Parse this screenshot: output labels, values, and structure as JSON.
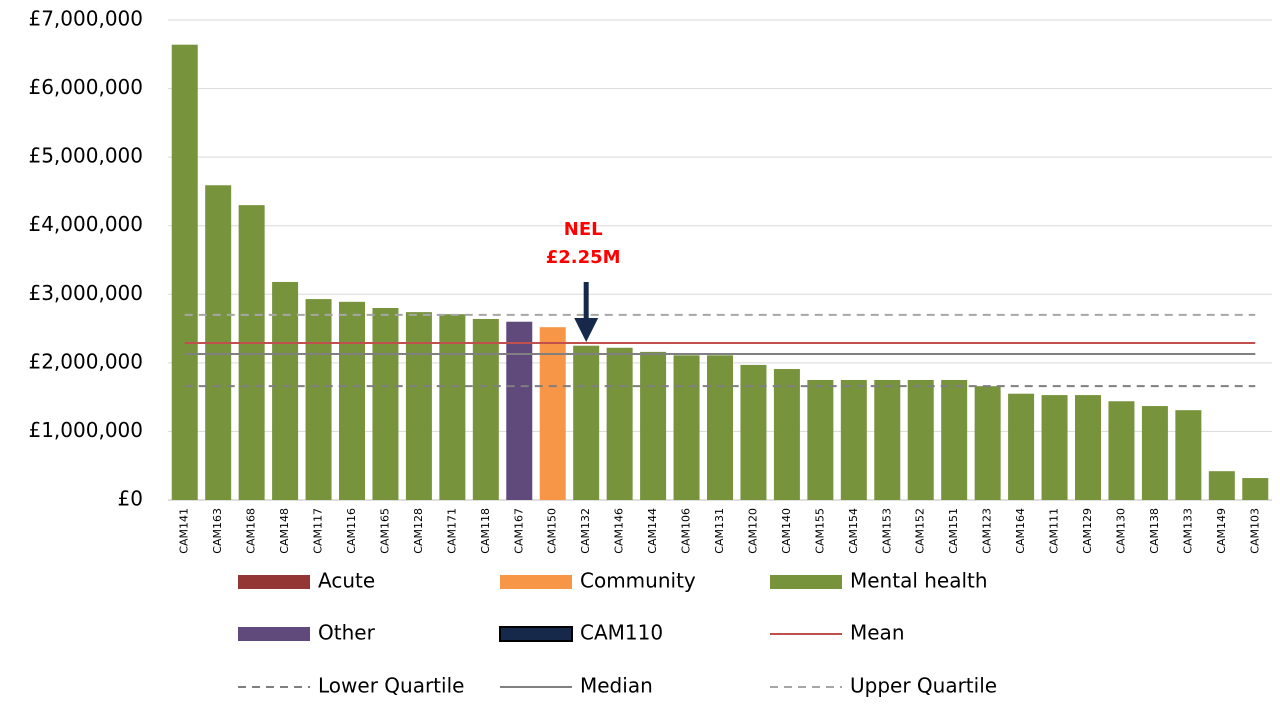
{
  "chart_data": {
    "type": "bar",
    "categories": [
      "CAM141",
      "CAM163",
      "CAM168",
      "CAM148",
      "CAM117",
      "CAM116",
      "CAM165",
      "CAM128",
      "CAM171",
      "CAM118",
      "CAM167",
      "CAM150",
      "CAM132",
      "CAM146",
      "CAM144",
      "CAM106",
      "CAM131",
      "CAM120",
      "CAM140",
      "CAM155",
      "CAM154",
      "CAM153",
      "CAM152",
      "CAM151",
      "CAM123",
      "CAM164",
      "CAM111",
      "CAM129",
      "CAM130",
      "CAM138",
      "CAM133",
      "CAM149",
      "CAM103"
    ],
    "series": [
      {
        "name": "Acute",
        "color": "#943634",
        "values": [
          null,
          null,
          null,
          null,
          null,
          null,
          null,
          null,
          null,
          null,
          null,
          null,
          null,
          null,
          null,
          null,
          null,
          null,
          null,
          null,
          null,
          null,
          null,
          null,
          null,
          null,
          null,
          null,
          null,
          null,
          null,
          null,
          null
        ]
      },
      {
        "name": "Community",
        "color": "#f79646",
        "values": [
          null,
          null,
          null,
          null,
          null,
          null,
          null,
          null,
          null,
          null,
          null,
          2520000,
          null,
          null,
          null,
          null,
          null,
          null,
          null,
          null,
          null,
          null,
          null,
          null,
          null,
          null,
          null,
          null,
          null,
          null,
          null,
          null,
          null
        ]
      },
      {
        "name": "Mental health",
        "color": "#77933c",
        "values": [
          6640000,
          4590000,
          4300000,
          3180000,
          2930000,
          2890000,
          2800000,
          2740000,
          2710000,
          2640000,
          null,
          null,
          2250000,
          2220000,
          2160000,
          2110000,
          2110000,
          1970000,
          1910000,
          1750000,
          1750000,
          1750000,
          1750000,
          1750000,
          1660000,
          1550000,
          1530000,
          1530000,
          1440000,
          1370000,
          1310000,
          420000,
          320000
        ]
      },
      {
        "name": "Other",
        "color": "#604a7b",
        "values": [
          null,
          null,
          null,
          null,
          null,
          null,
          null,
          null,
          null,
          null,
          2600000,
          null,
          null,
          null,
          null,
          null,
          null,
          null,
          null,
          null,
          null,
          null,
          null,
          null,
          null,
          null,
          null,
          null,
          null,
          null,
          null,
          null,
          null
        ]
      },
      {
        "name": "CAM110",
        "color": "#17294b",
        "values": [
          null,
          null,
          null,
          null,
          null,
          null,
          null,
          null,
          null,
          null,
          null,
          null,
          null,
          null,
          null,
          null,
          null,
          null,
          null,
          null,
          null,
          null,
          null,
          null,
          null,
          null,
          null,
          null,
          null,
          null,
          null,
          null,
          null
        ]
      }
    ],
    "reference_lines": [
      {
        "name": "Mean",
        "value": 2290000,
        "color": "#c0504d",
        "dashed": false
      },
      {
        "name": "Lower Quartile",
        "value": 1660000,
        "color": "#7f7f7f",
        "dashed": true
      },
      {
        "name": "Median",
        "value": 2130000,
        "color": "#808080",
        "dashed": false
      },
      {
        "name": "Upper Quartile",
        "value": 2700000,
        "color": "#a6a6a6",
        "dashed": true
      }
    ],
    "annotation": [
      "NEL",
      "£2.25M"
    ],
    "ylim": [
      0,
      7000000
    ],
    "yticks": [
      {
        "value": 0,
        "label": "£0"
      },
      {
        "value": 1000000,
        "label": "£1,000,000"
      },
      {
        "value": 2000000,
        "label": "£2,000,000"
      },
      {
        "value": 3000000,
        "label": "£3,000,000"
      },
      {
        "value": 4000000,
        "label": "£4,000,000"
      },
      {
        "value": 5000000,
        "label": "£5,000,000"
      },
      {
        "value": 6000000,
        "label": "£6,000,000"
      },
      {
        "value": 7000000,
        "label": "£7,000,000"
      }
    ],
    "grid": true
  }
}
